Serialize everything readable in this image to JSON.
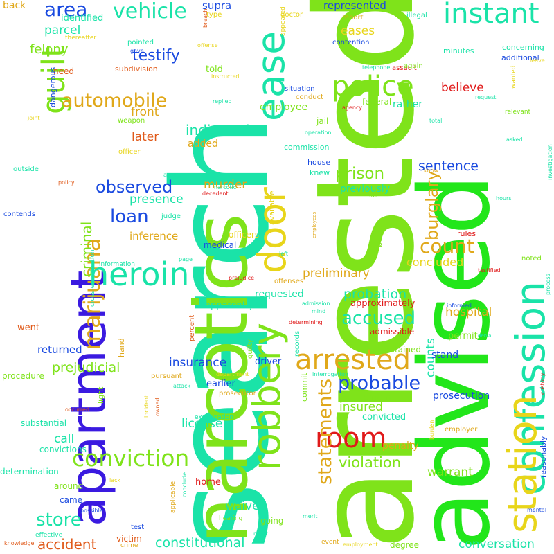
{
  "words": [
    {
      "text": "arrested",
      "color": "#7fe31a"
    },
    {
      "text": "search",
      "color": "#1ae3a8"
    },
    {
      "text": "advised",
      "color": "#22e61a"
    },
    {
      "text": "narcotics",
      "color": "#7fe31a"
    },
    {
      "text": "apartment",
      "color": "#3a1ae0"
    },
    {
      "text": "confession",
      "color": "#1ae3a8"
    },
    {
      "text": "station",
      "color": "#e8d51a"
    },
    {
      "text": "robbery",
      "color": "#7fe31a"
    },
    {
      "text": "door",
      "color": "#e8d51a"
    },
    {
      "text": "ease",
      "color": "#1ae3a8"
    },
    {
      "text": "marijuana",
      "color": "#e0a81a"
    },
    {
      "text": "guilt",
      "color": "#7fe31a"
    },
    {
      "text": "heroin",
      "color": "#1ae3a8"
    },
    {
      "text": "police",
      "color": "#7fe31a"
    },
    {
      "text": "instant",
      "color": "#1ae3a8"
    },
    {
      "text": "arrested",
      "color": "#e0a81a"
    },
    {
      "text": "room",
      "color": "#e01a1a"
    },
    {
      "text": "conviction",
      "color": "#7fe31a"
    },
    {
      "text": "vehicle",
      "color": "#1ae3a8"
    },
    {
      "text": "area",
      "color": "#1a4ae0"
    },
    {
      "text": "automobile",
      "color": "#e0a81a"
    },
    {
      "text": "observed",
      "color": "#1a4ae0"
    },
    {
      "text": "probable",
      "color": "#1a4ae0"
    },
    {
      "text": "statements",
      "color": "#e0a81a"
    },
    {
      "text": "accused",
      "color": "#1ae3a8"
    },
    {
      "text": "count",
      "color": "#e0a81a"
    },
    {
      "text": "store",
      "color": "#1ae3a8"
    },
    {
      "text": "burglary",
      "color": "#e0a81a"
    },
    {
      "text": "prison",
      "color": "#7fe31a"
    },
    {
      "text": "loan",
      "color": "#1a4ae0"
    },
    {
      "text": "criminal",
      "color": "#7fe31a"
    },
    {
      "text": "testify",
      "color": "#1a4ae0"
    },
    {
      "text": "indicated",
      "color": "#1ae3a8"
    },
    {
      "text": "sentence",
      "color": "#1a4ae0"
    },
    {
      "text": "presence",
      "color": "#1ae3a8"
    },
    {
      "text": "violation",
      "color": "#7fe31a"
    },
    {
      "text": "probation",
      "color": "#1ae3a8"
    },
    {
      "text": "prejudicial",
      "color": "#7fe31a"
    },
    {
      "text": "insurance",
      "color": "#1a4ae0"
    },
    {
      "text": "accident",
      "color": "#e05a1a"
    },
    {
      "text": "constitutional",
      "color": "#1ae3a8"
    },
    {
      "text": "conversation",
      "color": "#1ae3a8"
    },
    {
      "text": "murder",
      "color": "#e0a81a"
    },
    {
      "text": "preliminary",
      "color": "#e0a81a"
    },
    {
      "text": "hospital",
      "color": "#e0a81a"
    },
    {
      "text": "concluded",
      "color": "#e8d51a"
    },
    {
      "text": "warrant",
      "color": "#7fe31a"
    },
    {
      "text": "insured",
      "color": "#7fe31a"
    },
    {
      "text": "felony",
      "color": "#7fe31a"
    },
    {
      "text": "parcel",
      "color": "#1ae3a8"
    },
    {
      "text": "later",
      "color": "#e05a1a"
    },
    {
      "text": "front",
      "color": "#e0a81a"
    },
    {
      "text": "eases",
      "color": "#e8d51a"
    },
    {
      "text": "believe",
      "color": "#e01a1a"
    },
    {
      "text": "counts",
      "color": "#1ae3a8"
    },
    {
      "text": "call",
      "color": "#1ae3a8"
    },
    {
      "text": "waived",
      "color": "#1ae3a8"
    },
    {
      "text": "license",
      "color": "#1ae3a8"
    },
    {
      "text": "returned",
      "color": "#1a4ae0"
    },
    {
      "text": "represented",
      "color": "#1a4ae0"
    },
    {
      "text": "supra",
      "color": "#1a4ae0"
    },
    {
      "text": "told",
      "color": "#7fe31a"
    },
    {
      "text": "added",
      "color": "#e0a81a"
    },
    {
      "text": "employee",
      "color": "#7fe31a"
    },
    {
      "text": "rather",
      "color": "#1ae3a8"
    },
    {
      "text": "requested",
      "color": "#1ae3a8"
    },
    {
      "text": "penalty",
      "color": "#e0a81a"
    },
    {
      "text": "prosecution",
      "color": "#1a4ae0"
    },
    {
      "text": "earlier",
      "color": "#1a4ae0"
    },
    {
      "text": "driver",
      "color": "#1a4ae0"
    },
    {
      "text": "remain",
      "color": "#7fe31a"
    },
    {
      "text": "convicted",
      "color": "#1ae3a8"
    },
    {
      "text": "stand",
      "color": "#1a4ae0"
    },
    {
      "text": "apparently",
      "color": "#1ae3a8"
    },
    {
      "text": "permit",
      "color": "#7fe31a"
    },
    {
      "text": "approximately",
      "color": "#e01a1a"
    },
    {
      "text": "inference",
      "color": "#e0a81a"
    },
    {
      "text": "officers",
      "color": "#e8d51a"
    },
    {
      "text": "previously",
      "color": "#1ae3a8"
    },
    {
      "text": "back",
      "color": "#e0a81a"
    },
    {
      "text": "identified",
      "color": "#1ae3a8"
    },
    {
      "text": "need",
      "color": "#e05a1a"
    },
    {
      "text": "medical",
      "color": "#1a4ae0"
    },
    {
      "text": "went",
      "color": "#e05a1a"
    },
    {
      "text": "home",
      "color": "#e01a1a"
    },
    {
      "text": "going",
      "color": "#7fe31a"
    },
    {
      "text": "victim",
      "color": "#e05a1a"
    },
    {
      "text": "degree",
      "color": "#7fe31a"
    },
    {
      "text": "procedure",
      "color": "#7fe31a"
    },
    {
      "text": "substantial",
      "color": "#1ae3a8"
    },
    {
      "text": "convictions",
      "color": "#1ae3a8"
    },
    {
      "text": "determination",
      "color": "#1ae3a8"
    },
    {
      "text": "around",
      "color": "#7fe31a"
    },
    {
      "text": "came",
      "color": "#1a4ae0"
    },
    {
      "text": "admissible",
      "color": "#e01a1a"
    },
    {
      "text": "obtained",
      "color": "#7fe31a"
    },
    {
      "text": "jail",
      "color": "#7fe31a"
    },
    {
      "text": "federal",
      "color": "#7fe31a"
    },
    {
      "text": "minutes",
      "color": "#1ae3a8"
    },
    {
      "text": "concerning",
      "color": "#1ae3a8"
    },
    {
      "text": "additional",
      "color": "#1a4ae0"
    },
    {
      "text": "rules",
      "color": "#e01a1a"
    },
    {
      "text": "noted",
      "color": "#7fe31a"
    },
    {
      "text": "basis",
      "color": "#7fe31a"
    },
    {
      "text": "house",
      "color": "#1a4ae0"
    },
    {
      "text": "knew",
      "color": "#1ae3a8"
    },
    {
      "text": "available",
      "color": "#e8d51a"
    },
    {
      "text": "commission",
      "color": "#1ae3a8"
    },
    {
      "text": "employer",
      "color": "#e0a81a"
    },
    {
      "text": "reasonably",
      "color": "#1a4ae0"
    },
    {
      "text": "offenses",
      "color": "#e0a81a"
    },
    {
      "text": "situation",
      "color": "#1a4ae0"
    },
    {
      "text": "conduct",
      "color": "#e0a81a"
    },
    {
      "text": "assault",
      "color": "#e01a1a"
    },
    {
      "text": "report",
      "color": "#e0a81a"
    },
    {
      "text": "contention",
      "color": "#1a4ae0"
    },
    {
      "text": "illegal",
      "color": "#1ae3a8"
    },
    {
      "text": "again",
      "color": "#7fe31a"
    },
    {
      "text": "doctor",
      "color": "#e8d51a"
    },
    {
      "text": "subdivision",
      "color": "#e05a1a"
    },
    {
      "text": "pointed",
      "color": "#1ae3a8"
    },
    {
      "text": "weapon",
      "color": "#7fe31a"
    },
    {
      "text": "dangerous",
      "color": "#1a4ae0"
    },
    {
      "text": "outside",
      "color": "#1ae3a8"
    },
    {
      "text": "contends",
      "color": "#1a4ae0"
    },
    {
      "text": "judge",
      "color": "#1ae3a8"
    },
    {
      "text": "officer",
      "color": "#e8d51a"
    },
    {
      "text": "commit",
      "color": "#7fe31a"
    },
    {
      "text": "hand",
      "color": "#e0a81a"
    },
    {
      "text": "light",
      "color": "#7fe31a"
    },
    {
      "text": "pursuant",
      "color": "#e0a81a"
    },
    {
      "text": "prosecutor",
      "color": "#e0a81a"
    },
    {
      "text": "examination",
      "color": "#1ae3a8"
    },
    {
      "text": "percent",
      "color": "#e05a1a"
    },
    {
      "text": "guilty",
      "color": "#7fe31a"
    },
    {
      "text": "records",
      "color": "#1ae3a8"
    },
    {
      "text": "cross-examination",
      "color": "#1ae3a8"
    },
    {
      "text": "information",
      "color": "#1ae3a8"
    },
    {
      "text": "type",
      "color": "#e8d51a"
    },
    {
      "text": "thereafter",
      "color": "#e8d51a"
    },
    {
      "text": "gave",
      "color": "#1a4ae0"
    },
    {
      "text": "breach",
      "color": "#e05a1a"
    },
    {
      "text": "offense",
      "color": "#e8d51a"
    },
    {
      "text": "appeared",
      "color": "#e8d51a"
    },
    {
      "text": "telephone",
      "color": "#1ae3a8"
    },
    {
      "text": "instructed",
      "color": "#e8d51a"
    },
    {
      "text": "replied",
      "color": "#1ae3a8"
    },
    {
      "text": "agency",
      "color": "#e01a1a"
    },
    {
      "text": "request",
      "color": "#1ae3a8"
    },
    {
      "text": "leave",
      "color": "#e8d51a"
    },
    {
      "text": "wanted",
      "color": "#e8d51a"
    },
    {
      "text": "relevant",
      "color": "#7fe31a"
    },
    {
      "text": "total",
      "color": "#1ae3a8"
    },
    {
      "text": "investigation",
      "color": "#1ae3a8"
    },
    {
      "text": "asked",
      "color": "#1ae3a8"
    },
    {
      "text": "operation",
      "color": "#1ae3a8"
    },
    {
      "text": "joint",
      "color": "#e8d51a"
    },
    {
      "text": "policy",
      "color": "#e05a1a"
    },
    {
      "text": "access",
      "color": "#1ae3a8"
    },
    {
      "text": "relating",
      "color": "#1ae3a8"
    },
    {
      "text": "narcotic",
      "color": "#1ae3a8"
    },
    {
      "text": "decedent",
      "color": "#e01a1a"
    },
    {
      "text": "know",
      "color": "#e0a81a"
    },
    {
      "text": "hours",
      "color": "#1ae3a8"
    },
    {
      "text": "fair",
      "color": "#7fe31a"
    },
    {
      "text": "employees",
      "color": "#e0a81a"
    },
    {
      "text": "left",
      "color": "#1ae3a8"
    },
    {
      "text": "page",
      "color": "#1ae3a8"
    },
    {
      "text": "prejudice",
      "color": "#e01a1a"
    },
    {
      "text": "testified",
      "color": "#e01a1a"
    },
    {
      "text": "admission",
      "color": "#1ae3a8"
    },
    {
      "text": "mind",
      "color": "#1ae3a8"
    },
    {
      "text": "informed",
      "color": "#1a4ae0"
    },
    {
      "text": "process",
      "color": "#1ae3a8"
    },
    {
      "text": "denial",
      "color": "#1ae3a8"
    },
    {
      "text": "determining",
      "color": "#e01a1a"
    },
    {
      "text": "department",
      "color": "#e8d51a"
    },
    {
      "text": "interrogation",
      "color": "#1ae3a8"
    },
    {
      "text": "attack",
      "color": "#1ae3a8"
    },
    {
      "text": "owned",
      "color": "#e05a1a"
    },
    {
      "text": "incident",
      "color": "#e8d51a"
    },
    {
      "text": "occurred",
      "color": "#e05a1a"
    },
    {
      "text": "custody",
      "color": "#e01a1a"
    },
    {
      "text": "burden",
      "color": "#e8d51a"
    },
    {
      "text": "possible",
      "color": "#1a4ae0"
    },
    {
      "text": "lack",
      "color": "#e8d51a"
    },
    {
      "text": "applicable",
      "color": "#e0a81a"
    },
    {
      "text": "conclude",
      "color": "#1ae3a8"
    },
    {
      "text": "hearing",
      "color": "#7fe31a"
    },
    {
      "text": "merit",
      "color": "#1ae3a8"
    },
    {
      "text": "night",
      "color": "#1ae3a8"
    },
    {
      "text": "event",
      "color": "#e0a81a"
    },
    {
      "text": "employment",
      "color": "#e8d51a"
    },
    {
      "text": "effective",
      "color": "#1ae3a8"
    },
    {
      "text": "knowledge",
      "color": "#e05a1a"
    },
    {
      "text": "crime",
      "color": "#e0a81a"
    },
    {
      "text": "test",
      "color": "#1a4ae0"
    },
    {
      "text": "mental",
      "color": "#1a4ae0"
    }
  ]
}
